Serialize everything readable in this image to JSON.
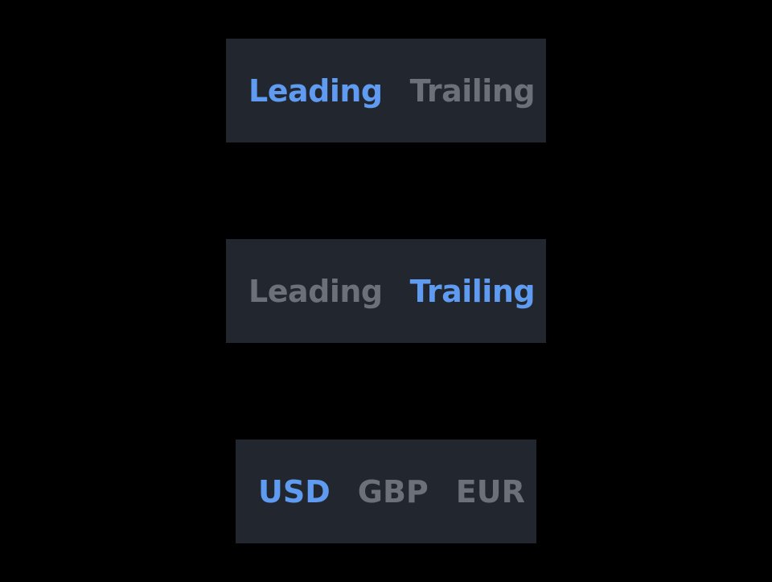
{
  "colors": {
    "background": "#000000",
    "control_bg": "#22262f",
    "active": "#5f9bf0",
    "inactive": "#6b7079"
  },
  "controls": [
    {
      "options": [
        {
          "label": "Leading",
          "selected": true
        },
        {
          "label": "Trailing",
          "selected": false
        }
      ]
    },
    {
      "options": [
        {
          "label": "Leading",
          "selected": false
        },
        {
          "label": "Trailing",
          "selected": true
        }
      ]
    },
    {
      "options": [
        {
          "label": "USD",
          "selected": true
        },
        {
          "label": "GBP",
          "selected": false
        },
        {
          "label": "EUR",
          "selected": false
        }
      ]
    }
  ]
}
